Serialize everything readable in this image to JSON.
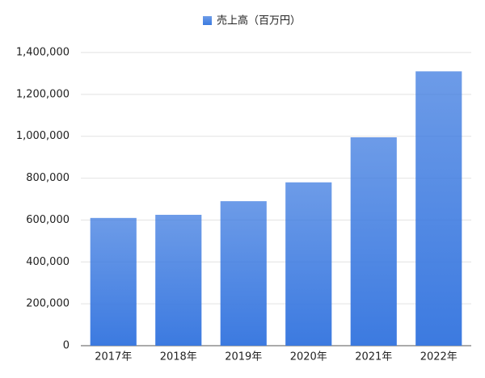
{
  "chart_data": {
    "type": "bar",
    "categories": [
      "2017年",
      "2018年",
      "2019年",
      "2020年",
      "2021年",
      "2022年"
    ],
    "series": [
      {
        "name": "売上高（百万円）",
        "color": "#3c7ae0",
        "values": [
          610000,
          625000,
          690000,
          780000,
          995000,
          1310000
        ]
      }
    ],
    "ylim": [
      0,
      1400000
    ],
    "yticks": [
      0,
      {
        "value": 200000,
        "label": "200,000"
      },
      {
        "value": 400000,
        "label": "400,000"
      },
      {
        "value": 600000,
        "label": "600,000"
      },
      {
        "value": 800000,
        "label": "800,000"
      },
      {
        "value": 1000000,
        "label": "1,000,000"
      },
      {
        "value": 1200000,
        "label": "1,200,000"
      },
      {
        "value": 1400000,
        "label": "1,400,000"
      }
    ],
    "grid": true,
    "legend": "top"
  }
}
